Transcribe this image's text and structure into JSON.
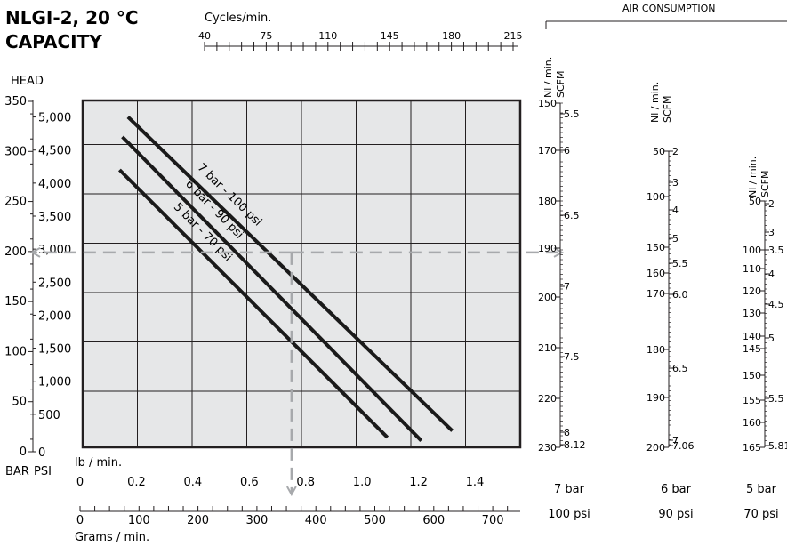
{
  "title_line1": "NLGI-2, 20 °C",
  "title_line2": "CAPACITY",
  "head_label": "HEAD",
  "bar_label": "BAR",
  "psi_label": "PSI",
  "cycles_label": "Cycles/min.",
  "cycles_ticks": [
    "40",
    "75",
    "110",
    "145",
    "180",
    "215"
  ],
  "lb_label": "lb / min.",
  "lb_ticks": [
    "0",
    "0.2",
    "0.4",
    "0.6",
    "0.8",
    "1.0",
    "1.2",
    "1.4"
  ],
  "grams_label": "Grams / min.",
  "grams_ticks": [
    "0",
    "100",
    "200",
    "300",
    "400",
    "500",
    "600",
    "700"
  ],
  "bar_ticks": [
    "0",
    "50",
    "100",
    "150",
    "200",
    "250",
    "300",
    "350"
  ],
  "psi_ticks": [
    "0",
    "500",
    "1,000",
    "1,500",
    "2,000",
    "2,500",
    "3,000",
    "3,500",
    "4,000",
    "4,500",
    "5,000"
  ],
  "air_consumption_label": "AIR CONSUMPTION",
  "nl_label": "Nl / min.",
  "scfm_label": "SCFM",
  "air_scales": [
    {
      "bar": "7 bar",
      "psi": "100 psi",
      "nl_ticks": [
        "150",
        "170",
        "180",
        "190",
        "200",
        "210",
        "220",
        "230"
      ],
      "scfm_ticks": [
        "5.5",
        "6",
        "6.5",
        "7",
        "7.5",
        "8",
        "8.12"
      ]
    },
    {
      "bar": "6 bar",
      "psi": "90 psi",
      "nl_ticks": [
        "50",
        "100",
        "150",
        "160",
        "170",
        "180",
        "190",
        "200"
      ],
      "scfm_ticks": [
        "2",
        "3",
        "4",
        "5",
        "5.5",
        "6.0",
        "6.5",
        "7",
        "7.06"
      ]
    },
    {
      "bar": "5 bar",
      "psi": "70 psi",
      "nl_ticks": [
        "50",
        "100",
        "110",
        "120",
        "130",
        "140",
        "145",
        "150",
        "155",
        "160",
        "165"
      ],
      "scfm_ticks": [
        "2",
        "3",
        "3.5",
        "4",
        "4.5",
        "5",
        "5.5",
        "5.81"
      ]
    }
  ],
  "colors": {
    "plot_bg": "#e6e7e8",
    "line": "#1a1a1a",
    "dashed": "#a7a9ac",
    "grid": "#231f20"
  },
  "chart_data": {
    "type": "line",
    "xlabel": "lb / min.",
    "ylabel": "HEAD",
    "xlim": [
      0,
      1.6
    ],
    "ylim": [
      0,
      5250
    ],
    "grid": true,
    "series": [
      {
        "name": "7 bar - 100 psi",
        "x": [
          0.17,
          1.32
        ],
        "y": [
          5000,
          250
        ]
      },
      {
        "name": "6 bar - 90 psi",
        "x": [
          0.15,
          1.21
        ],
        "y": [
          4700,
          100
        ]
      },
      {
        "name": "5 bar - 70 psi",
        "x": [
          0.14,
          1.09
        ],
        "y": [
          4200,
          150
        ]
      }
    ],
    "example_point": {
      "x": 0.75,
      "y": 2950
    }
  }
}
